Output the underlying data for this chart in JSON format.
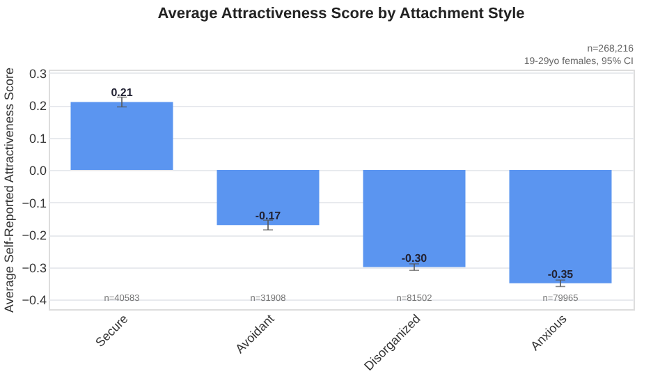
{
  "chart_data": {
    "type": "bar",
    "title": "Average Attractiveness Score by Attachment Style",
    "ylabel": "Average Self-Reported Attractiveness Score",
    "categories": [
      "Secure",
      "Avoidant",
      "Disorganized",
      "Anxious"
    ],
    "values": [
      0.21,
      -0.17,
      -0.3,
      -0.35
    ],
    "value_labels": [
      "0.21",
      "-0.17",
      "-0.30",
      "-0.35"
    ],
    "errors": [
      0.015,
      0.015,
      0.01,
      0.01
    ],
    "color": "#5b95f0",
    "ylim": [
      -0.43,
      0.31
    ],
    "yticks": [
      -0.4,
      -0.3,
      -0.2,
      -0.1,
      {
        "value": 0,
        "label": "0.0"
      },
      0.1,
      0.2,
      0.3
    ],
    "grid": "y",
    "annotations": [
      "n=268,216",
      "19-29yo females, 95% CI",
      "n=40583",
      "n=31908",
      "n=81502",
      "n=79965"
    ]
  }
}
